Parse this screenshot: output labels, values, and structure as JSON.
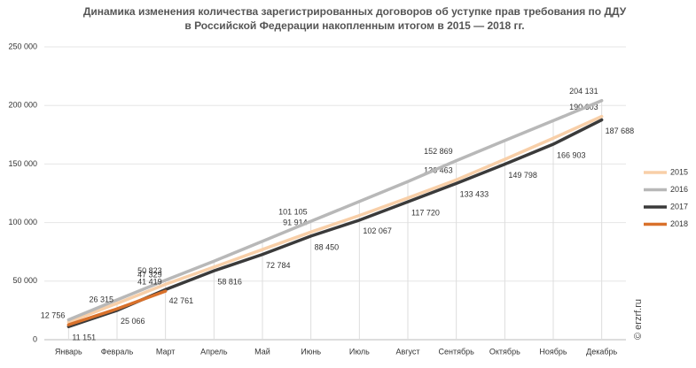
{
  "chart_data": {
    "type": "line",
    "title": [
      "Динамика изменения количества зарегистрированных договоров об уступке прав требования по ДДУ",
      "в Российской Федерации накопленным итогом в 2015 — 2018 гг."
    ],
    "watermark": "© erzrf.ru",
    "categories": [
      "Январь",
      "Февраль",
      "Март",
      "Апрель",
      "Май",
      "Июнь",
      "Июль",
      "Август",
      "Сентябрь",
      "Октябрь",
      "Ноябрь",
      "Декабрь"
    ],
    "series": [
      {
        "name": "2015",
        "color": "#f8cfa8",
        "values": [
          15000,
          31000,
          47329,
          62000,
          77000,
          91914,
          106000,
          121000,
          136463,
          154000,
          172000,
          190603
        ],
        "value_labels": [
          null,
          null,
          "47 329",
          null,
          null,
          "91 914",
          null,
          null,
          "136 463",
          null,
          null,
          "190 603"
        ]
      },
      {
        "name": "2016",
        "color": "#b8b8b8",
        "values": [
          17000,
          34000,
          50823,
          67000,
          84000,
          101105,
          118000,
          135000,
          152869,
          170000,
          187000,
          204131
        ],
        "value_labels": [
          null,
          null,
          "50 823",
          null,
          null,
          "101 105",
          null,
          null,
          "152 869",
          null,
          null,
          "204 131"
        ]
      },
      {
        "name": "2017",
        "color": "#3a3a3a",
        "values": [
          11151,
          25066,
          42761,
          58816,
          72784,
          88450,
          102067,
          117720,
          133433,
          149798,
          166903,
          187688
        ],
        "value_labels": [
          "11 151",
          "25 066",
          "42 761",
          "58 816",
          "72 784",
          "88 450",
          "102 067",
          "117 720",
          "133 433",
          "149 798",
          "166 903",
          "187 688"
        ]
      },
      {
        "name": "2018",
        "color": "#d9712b",
        "values": [
          12756,
          26315,
          41419,
          null,
          null,
          null,
          null,
          null,
          null,
          null,
          null,
          null
        ],
        "value_labels": [
          "12 756",
          "26 315",
          "41 419",
          null,
          null,
          null,
          null,
          null,
          null,
          null,
          null,
          null
        ]
      }
    ],
    "ylim": [
      0,
      250000
    ],
    "yticks": [
      0,
      {
        "value": 50000,
        "label": "50 000"
      },
      {
        "value": 100000,
        "label": "100 000"
      },
      {
        "value": 150000,
        "label": "150 000"
      },
      {
        "value": 200000,
        "label": "200 000"
      },
      {
        "value": 250000,
        "label": "250 000"
      }
    ],
    "legend": "right",
    "grid": true
  }
}
